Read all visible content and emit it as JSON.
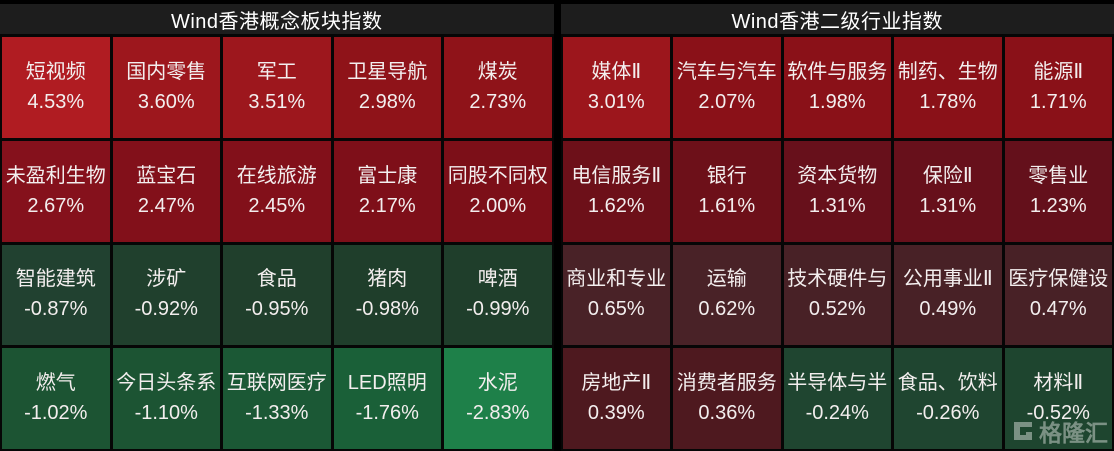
{
  "header": {
    "left_title": "Wind香港概念板块指数",
    "right_title": "Wind香港二级行业指数"
  },
  "watermark": {
    "text": "格隆汇"
  },
  "colors": {
    "background": "#000000",
    "header_bg": "#1d1d1d",
    "header_text": "#ffffff",
    "cell_text": "#f3eeee",
    "grid_line": "#060606"
  },
  "chart_data": {
    "type": "heatmap",
    "unit": "%",
    "legend_position": "none",
    "panels": [
      {
        "title": "Wind香港概念板块指数",
        "columns": 5,
        "rows": 4,
        "cells": [
          {
            "name": "短视频",
            "value": 4.53,
            "label": "4.53%",
            "color": "#b01c22"
          },
          {
            "name": "国内零售",
            "value": 3.6,
            "label": "3.60%",
            "color": "#9d171d"
          },
          {
            "name": "军工",
            "value": 3.51,
            "label": "3.51%",
            "color": "#9d171d"
          },
          {
            "name": "卫星导航",
            "value": 2.98,
            "label": "2.98%",
            "color": "#8f1319"
          },
          {
            "name": "煤炭",
            "value": 2.73,
            "label": "2.73%",
            "color": "#8f1319"
          },
          {
            "name": "未盈利生物",
            "value": 2.67,
            "label": "2.67%",
            "color": "#85111c"
          },
          {
            "name": "蓝宝石",
            "value": 2.47,
            "label": "2.47%",
            "color": "#82101a"
          },
          {
            "name": "在线旅游",
            "value": 2.45,
            "label": "2.45%",
            "color": "#82101a"
          },
          {
            "name": "富士康",
            "value": 2.17,
            "label": "2.17%",
            "color": "#7e0f19"
          },
          {
            "name": "同股不同权",
            "value": 2.0,
            "label": "2.00%",
            "color": "#7c0f18"
          },
          {
            "name": "智能建筑",
            "value": -0.87,
            "label": "-0.87%",
            "color": "#214130"
          },
          {
            "name": "涉矿",
            "value": -0.92,
            "label": "-0.92%",
            "color": "#20402d"
          },
          {
            "name": "食品",
            "value": -0.95,
            "label": "-0.95%",
            "color": "#203f2c"
          },
          {
            "name": "猪肉",
            "value": -0.98,
            "label": "-0.98%",
            "color": "#1f3e2b"
          },
          {
            "name": "啤酒",
            "value": -0.99,
            "label": "-0.99%",
            "color": "#1f3e2b"
          },
          {
            "name": "燃气",
            "value": -1.02,
            "label": "-1.02%",
            "color": "#1c5433"
          },
          {
            "name": "今日头条系",
            "value": -1.1,
            "label": "-1.10%",
            "color": "#1c5433"
          },
          {
            "name": "互联网医疗",
            "value": -1.33,
            "label": "-1.33%",
            "color": "#1b5835"
          },
          {
            "name": "LED照明",
            "value": -1.76,
            "label": "-1.76%",
            "color": "#1a6038"
          },
          {
            "name": "水泥",
            "value": -2.83,
            "label": "-2.83%",
            "color": "#1e8049"
          }
        ]
      },
      {
        "title": "Wind香港二级行业指数",
        "columns": 5,
        "rows": 4,
        "cells": [
          {
            "name": "媒体Ⅱ",
            "value": 3.01,
            "label": "3.01%",
            "color": "#9c161c"
          },
          {
            "name": "汽车与汽车",
            "value": 2.07,
            "label": "2.07%",
            "color": "#8a1118"
          },
          {
            "name": "软件与服务",
            "value": 1.98,
            "label": "1.98%",
            "color": "#8a1118"
          },
          {
            "name": "制药、生物",
            "value": 1.78,
            "label": "1.78%",
            "color": "#8a1118"
          },
          {
            "name": "能源Ⅱ",
            "value": 1.71,
            "label": "1.71%",
            "color": "#8a1118"
          },
          {
            "name": "电信服务Ⅱ",
            "value": 1.62,
            "label": "1.62%",
            "color": "#6d1019"
          },
          {
            "name": "银行",
            "value": 1.61,
            "label": "1.61%",
            "color": "#6d1019"
          },
          {
            "name": "资本货物",
            "value": 1.31,
            "label": "1.31%",
            "color": "#67101b"
          },
          {
            "name": "保险Ⅱ",
            "value": 1.31,
            "label": "1.31%",
            "color": "#67101b"
          },
          {
            "name": "零售业",
            "value": 1.23,
            "label": "1.23%",
            "color": "#64101b"
          },
          {
            "name": "商业和专业",
            "value": 0.65,
            "label": "0.65%",
            "color": "#492227"
          },
          {
            "name": "运输",
            "value": 0.62,
            "label": "0.62%",
            "color": "#492227"
          },
          {
            "name": "技术硬件与",
            "value": 0.52,
            "label": "0.52%",
            "color": "#482126"
          },
          {
            "name": "公用事业Ⅱ",
            "value": 0.49,
            "label": "0.49%",
            "color": "#482126"
          },
          {
            "name": "医疗保健设",
            "value": 0.47,
            "label": "0.47%",
            "color": "#482126"
          },
          {
            "name": "房地产Ⅱ",
            "value": 0.39,
            "label": "0.39%",
            "color": "#4e191f"
          },
          {
            "name": "消费者服务",
            "value": 0.36,
            "label": "0.36%",
            "color": "#4e191f"
          },
          {
            "name": "半导体与半",
            "value": -0.24,
            "label": "-0.24%",
            "color": "#1f4530"
          },
          {
            "name": "食品、饮料",
            "value": -0.26,
            "label": "-0.26%",
            "color": "#1f4530"
          },
          {
            "name": "材料Ⅱ",
            "value": -0.52,
            "label": "-0.52%",
            "color": "#1e452f"
          }
        ]
      }
    ]
  }
}
